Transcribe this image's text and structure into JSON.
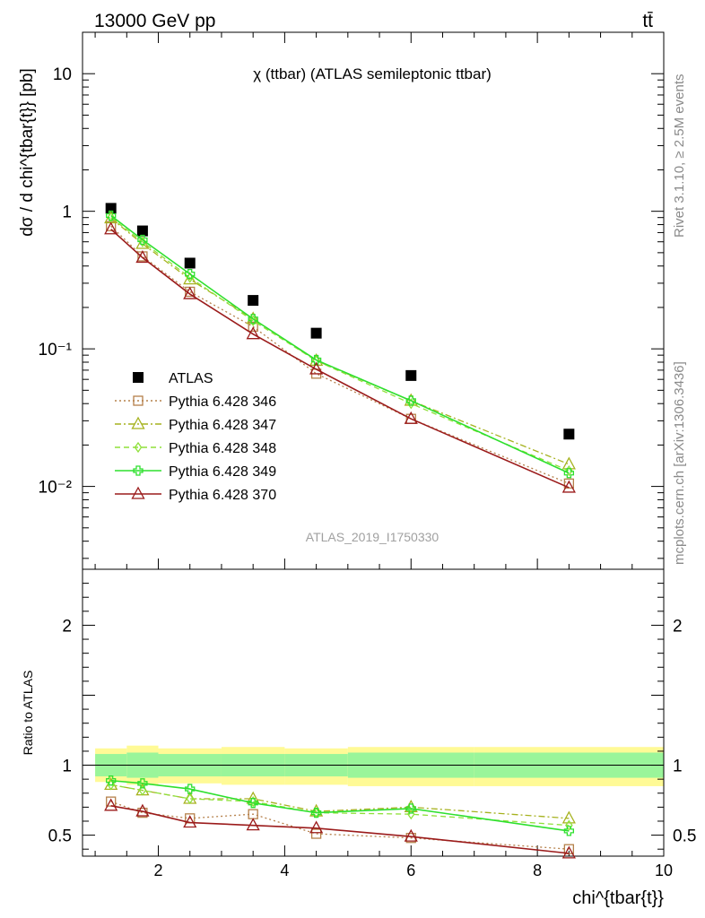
{
  "header": {
    "energy_label": "13000 GeV pp",
    "process_label": "tt̄",
    "side_top": "Rivet 3.1.10, ≥ 2.5M events",
    "side_bottom": "mcplots.cern.ch [arXiv:1306.3436]",
    "analysis_id": "ATLAS_2019_I1750330"
  },
  "chart_data": [
    {
      "type": "line",
      "panel": "main",
      "title": "χ (ttbar) (ATLAS semileptonic ttbar)",
      "ylabel": "dσ / d chi^{tbar{t}} [pb]",
      "yscale": "log",
      "ylim": [
        0.0025,
        20
      ],
      "xlim": [
        0.8,
        10
      ],
      "yticks": [
        {
          "value": 0.01,
          "label": "10⁻²"
        },
        {
          "value": 0.1,
          "label": "10⁻¹"
        },
        {
          "value": 1,
          "label": "1"
        },
        {
          "value": 10,
          "label": "10"
        }
      ],
      "legend_position": "bottom-left",
      "x": [
        1.25,
        1.75,
        2.5,
        3.5,
        4.5,
        6.0,
        8.5
      ],
      "series": [
        {
          "name": "ATLAS",
          "color": "#000000",
          "marker": "square-filled",
          "style": "none",
          "values": [
            1.05,
            0.72,
            0.42,
            0.225,
            0.13,
            0.064,
            0.024
          ]
        },
        {
          "name": "Pythia 6.428 346",
          "color": "#b5804a",
          "marker": "square-open",
          "style": "dotted",
          "values": [
            0.78,
            0.47,
            0.26,
            0.145,
            0.066,
            0.031,
            0.0105
          ]
        },
        {
          "name": "Pythia 6.428 347",
          "color": "#a6b21f",
          "marker": "triangle-open",
          "style": "dashdot",
          "values": [
            0.89,
            0.58,
            0.32,
            0.165,
            0.082,
            0.042,
            0.0145
          ]
        },
        {
          "name": "Pythia 6.428 348",
          "color": "#8fe03a",
          "marker": "diamond-open",
          "style": "dashed",
          "values": [
            0.9,
            0.6,
            0.33,
            0.16,
            0.082,
            0.04,
            0.013
          ]
        },
        {
          "name": "Pythia 6.428 349",
          "color": "#2ee02e",
          "marker": "cross-open",
          "style": "solid",
          "values": [
            0.93,
            0.62,
            0.35,
            0.165,
            0.083,
            0.042,
            0.0125
          ]
        },
        {
          "name": "Pythia 6.428 370",
          "color": "#9b1b1b",
          "marker": "triangle-open",
          "style": "solid",
          "values": [
            0.74,
            0.46,
            0.25,
            0.128,
            0.071,
            0.031,
            0.0098
          ]
        }
      ]
    },
    {
      "type": "line",
      "panel": "ratio",
      "ylabel": "Ratio to ATLAS",
      "xlabel": "chi^{tbar{t}}",
      "ylim": [
        0.35,
        2.4
      ],
      "xlim": [
        0.8,
        10
      ],
      "xticks": [
        2,
        4,
        6,
        8,
        10
      ],
      "yticks": [
        0.5,
        1,
        2
      ],
      "bin_edges": [
        1.0,
        1.5,
        2.0,
        3.0,
        4.0,
        5.0,
        7.0,
        10.0
      ],
      "band_inner": [
        [
          0.92,
          1.08
        ],
        [
          0.91,
          1.09
        ],
        [
          0.92,
          1.08
        ],
        [
          0.92,
          1.08
        ],
        [
          0.92,
          1.08
        ],
        [
          0.91,
          1.09
        ],
        [
          0.91,
          1.09
        ]
      ],
      "band_outer": [
        [
          0.88,
          1.12
        ],
        [
          0.86,
          1.14
        ],
        [
          0.87,
          1.12
        ],
        [
          0.86,
          1.13
        ],
        [
          0.86,
          1.12
        ],
        [
          0.85,
          1.13
        ],
        [
          0.85,
          1.13
        ]
      ],
      "x": [
        1.25,
        1.75,
        2.5,
        3.5,
        4.5,
        6.0,
        8.5
      ],
      "series": [
        {
          "name": "Pythia 6.428 346",
          "values": [
            0.74,
            0.66,
            0.62,
            0.65,
            0.51,
            0.48,
            0.4
          ]
        },
        {
          "name": "Pythia 6.428 347",
          "values": [
            0.86,
            0.82,
            0.76,
            0.76,
            0.67,
            0.7,
            0.62
          ]
        },
        {
          "name": "Pythia 6.428 348",
          "values": [
            0.86,
            0.82,
            0.76,
            0.74,
            0.66,
            0.65,
            0.57
          ]
        },
        {
          "name": "Pythia 6.428 349",
          "values": [
            0.89,
            0.87,
            0.83,
            0.73,
            0.66,
            0.69,
            0.53
          ]
        },
        {
          "name": "Pythia 6.428 370",
          "values": [
            0.71,
            0.67,
            0.59,
            0.57,
            0.55,
            0.49,
            0.37
          ]
        }
      ]
    }
  ]
}
